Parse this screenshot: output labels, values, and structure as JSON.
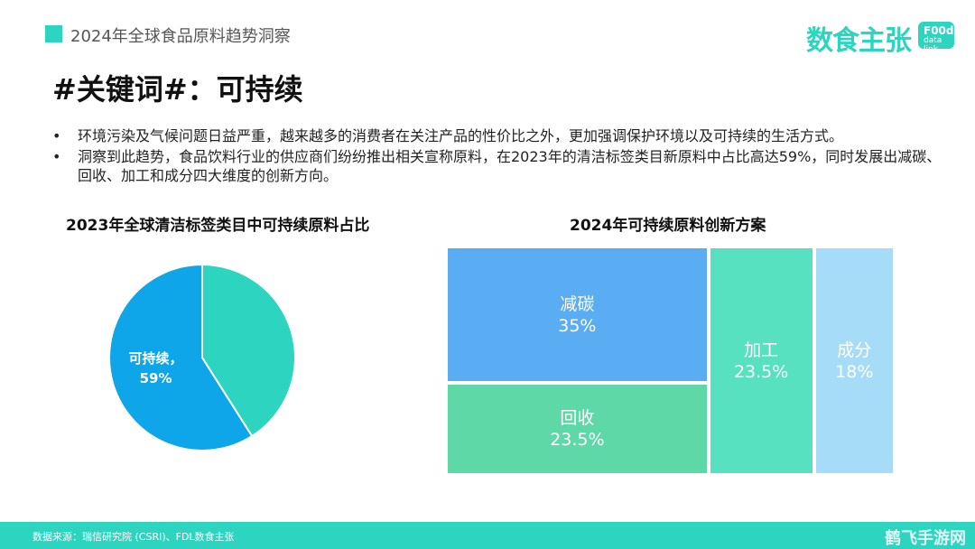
{
  "header": {
    "title": "2024年全球食品原料趋势洞察"
  },
  "logo": {
    "text": "数食主张",
    "badge_line1": "F00d",
    "badge_line2": "data link",
    "color": "#2dd4bf"
  },
  "heading": "#关键词#：可持续",
  "bullets": [
    {
      "marker": "•",
      "text": "环境污染及气候问题日益严重，越来越多的消费者在关注产品的性价比之外，更加强调保护环境以及可持续的生活方式。"
    },
    {
      "marker": "•",
      "text": "洞察到此趋势，食品饮料行业的供应商们纷纷推出相关宣称原料，在2023年的清洁标签类目新原料中占比高达59%，同时发展出减碳、回收、加工和成分四大维度的创新方向。"
    }
  ],
  "chart_data": [
    {
      "type": "pie",
      "title": "2023年全球清洁标签类目中可持续原料占比",
      "slices": [
        {
          "label": "可持续，",
          "value": 59,
          "value_label": "59%",
          "color": "#0ea5e9"
        },
        {
          "label": "",
          "value": 41,
          "value_label": "",
          "color": "#2dd4bf"
        }
      ]
    },
    {
      "type": "treemap",
      "title": "2024年可持续原料创新方案",
      "items": [
        {
          "label": "减碳",
          "value": 35,
          "value_label": "35%",
          "color": "#5aacf3"
        },
        {
          "label": "回收",
          "value": 23.5,
          "value_label": "23.5%",
          "color": "#5ed8a7"
        },
        {
          "label": "加工",
          "value": 23.5,
          "value_label": "23.5%",
          "color": "#58e1c1"
        },
        {
          "label": "成分",
          "value": 18,
          "value_label": "18%",
          "color": "#a6dcf7"
        }
      ]
    }
  ],
  "footer": {
    "source": "数据来源：瑞信研究院 (CSRI)、FDL数食主张",
    "watermark": "鹤飞手游网"
  }
}
